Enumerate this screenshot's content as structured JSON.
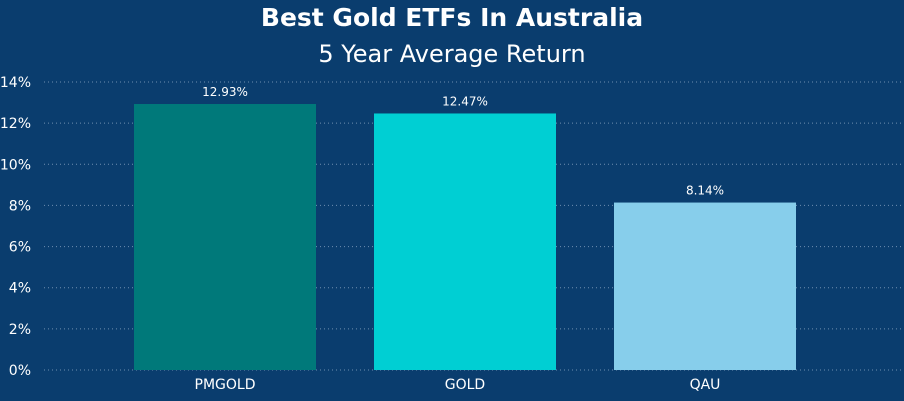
{
  "chart_data": {
    "type": "bar",
    "title": "Best Gold ETFs In Australia",
    "subtitle": "5 Year Average Return",
    "categories": [
      "PMGOLD",
      "GOLD",
      "QAU"
    ],
    "values": [
      12.93,
      12.47,
      8.14
    ],
    "data_labels": [
      "12.93%",
      "12.47%",
      "8.14%"
    ],
    "bar_colors": [
      "#00797a",
      "#00cfd3",
      "#87ceeb"
    ],
    "ylim": [
      0,
      14
    ],
    "yticks": [
      0,
      2,
      4,
      6,
      8,
      10,
      12,
      14
    ],
    "ytick_labels": [
      "0%",
      "2%",
      "4%",
      "6%",
      "8%",
      "10%",
      "12%",
      "14%"
    ],
    "xlabel": "",
    "ylabel": "",
    "grid": true,
    "legend": "none"
  },
  "colors": {
    "background": "#0a3d6e",
    "gridline": "#6f8fb0",
    "text": "#ffffff"
  }
}
